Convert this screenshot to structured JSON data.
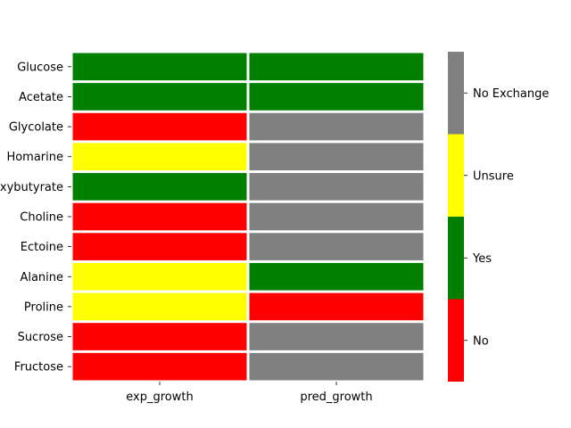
{
  "chart_data": {
    "type": "heatmap",
    "title": "",
    "xlabel": "",
    "ylabel": "",
    "columns": [
      "exp_growth",
      "pred_growth"
    ],
    "rows": [
      "Glucose",
      "Acetate",
      "Glycolate",
      "Homarine",
      "Hydroxybutyrate",
      "Choline",
      "Ectoine",
      "Alanine",
      "Proline",
      "Sucrose",
      "Fructose"
    ],
    "cells": [
      [
        "Yes",
        "Yes"
      ],
      [
        "Yes",
        "Yes"
      ],
      [
        "No",
        "No Exchange"
      ],
      [
        "Unsure",
        "No Exchange"
      ],
      [
        "Yes",
        "No Exchange"
      ],
      [
        "No",
        "No Exchange"
      ],
      [
        "No",
        "No Exchange"
      ],
      [
        "Unsure",
        "Yes"
      ],
      [
        "Unsure",
        "No"
      ],
      [
        "No",
        "No Exchange"
      ],
      [
        "No",
        "No Exchange"
      ]
    ],
    "categories": [
      "No",
      "Yes",
      "Unsure",
      "No Exchange"
    ],
    "colors": {
      "No": "#ff0000",
      "Yes": "#008000",
      "Unsure": "#ffff00",
      "No Exchange": "#808080"
    },
    "legend": "colorbar-right",
    "grid": false
  }
}
